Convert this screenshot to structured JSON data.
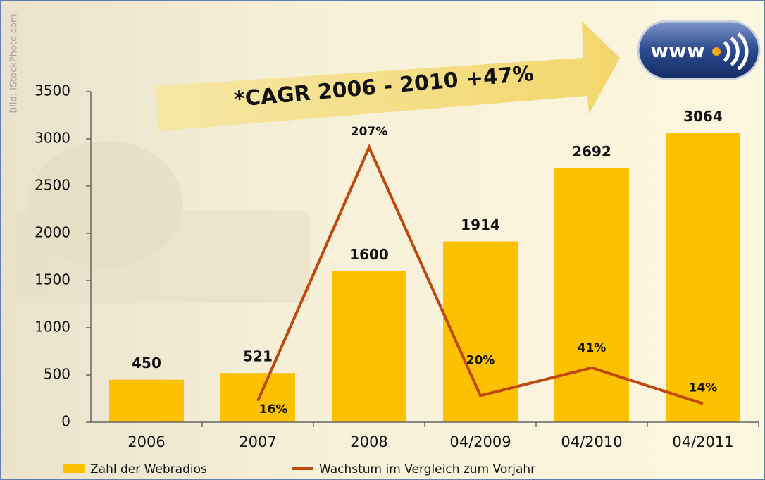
{
  "credit": "Bild: iStockPhoto.com",
  "logo": "www",
  "chart_data": {
    "type": "bar",
    "annotation": "*CAGR 2006 - 2010 +47%",
    "categories": [
      "2006",
      "2007",
      "2008",
      "04/2009",
      "04/2010",
      "04/2011"
    ],
    "series": [
      {
        "name": "Zahl der Webradios",
        "type": "bar",
        "color": "#fcc100",
        "values": [
          450,
          521,
          1600,
          1914,
          2692,
          3064
        ]
      },
      {
        "name": "Wachstum im Vergleich zum Vorjahr",
        "type": "line",
        "axis": "y2",
        "color": "#c0480f",
        "values": [
          null,
          16,
          207,
          20,
          41,
          14
        ],
        "value_labels": [
          null,
          "16%",
          "207%",
          "20%",
          "41%",
          "14%"
        ]
      }
    ],
    "ylim": [
      0,
      3500
    ],
    "yticks": [
      0,
      500,
      1000,
      1500,
      2000,
      2500,
      3000,
      3500
    ],
    "y2lim": [
      0,
      249
    ],
    "legend": "bottom"
  }
}
